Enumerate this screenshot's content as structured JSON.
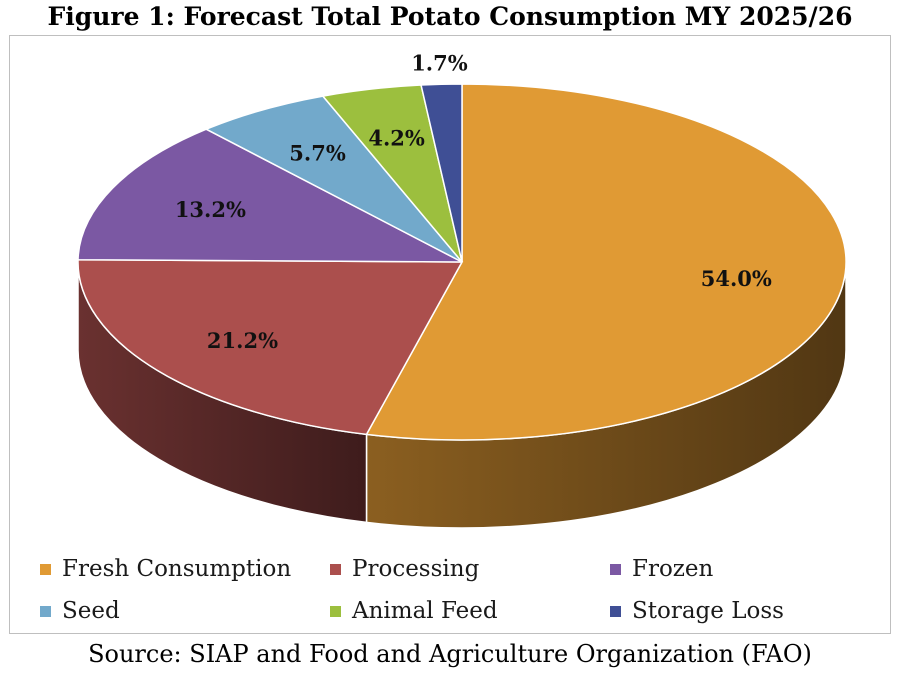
{
  "chart_data": {
    "type": "pie",
    "title": "Figure 1: Forecast Total Potato Consumption MY 2025/26",
    "source": "Source: SIAP and Food and Agriculture Organization (FAO)",
    "legend_position": "bottom",
    "slices": [
      {
        "name": "Fresh Consumption",
        "value": 54.0,
        "label": "54.0%",
        "color": "#e09a34"
      },
      {
        "name": "Processing",
        "value": 21.2,
        "label": "21.2%",
        "color": "#ab4f4d"
      },
      {
        "name": "Frozen",
        "value": 13.2,
        "label": "13.2%",
        "color": "#7b58a3"
      },
      {
        "name": "Seed",
        "value": 5.7,
        "label": "5.7%",
        "color": "#72a9cb"
      },
      {
        "name": "Animal Feed",
        "value": 4.2,
        "label": "4.2%",
        "color": "#9cbf3e"
      },
      {
        "name": "Storage Loss",
        "value": 1.7,
        "label": "1.7%",
        "color": "#3f4f95"
      }
    ]
  }
}
